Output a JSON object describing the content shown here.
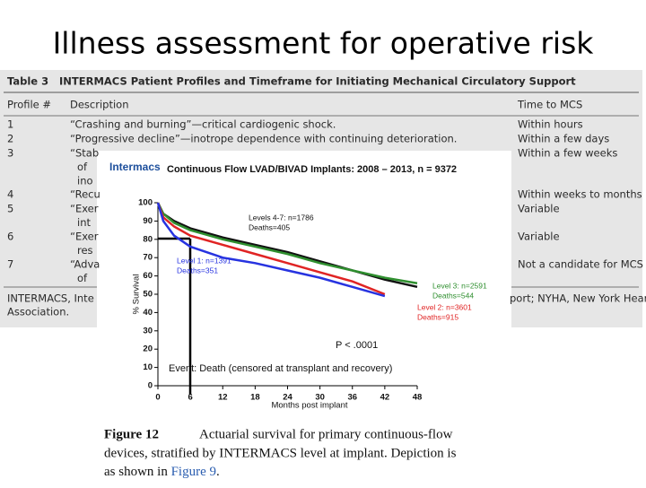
{
  "title": "Illness assessment for operative risk",
  "table": {
    "label": "Table 3",
    "caption": "INTERMACS Patient Profiles and Timeframe for Initiating Mechanical Circulatory Support",
    "columns": [
      "Profile #",
      "Description",
      "Time to MCS"
    ],
    "rows": [
      {
        "profile": "1",
        "description": [
          "“Crashing and burning”—critical cardiogenic shock."
        ],
        "time": "Within hours"
      },
      {
        "profile": "2",
        "description": [
          "“Progressive decline”—inotrope dependence with continuing deterioration."
        ],
        "time": "Within a few days"
      },
      {
        "profile": "3",
        "description": [
          "“Stab",
          "of",
          "ino"
        ],
        "time": "Within a few weeks"
      },
      {
        "profile": "4",
        "description": [
          "“Recu"
        ],
        "time": "Within weeks to months"
      },
      {
        "profile": "5",
        "description": [
          "“Exer",
          "int"
        ],
        "time": "Variable"
      },
      {
        "profile": "6",
        "description": [
          "“Exer",
          "res"
        ],
        "time": "Variable"
      },
      {
        "profile": "7",
        "description": [
          "“Adva",
          "of"
        ],
        "time": "Not a candidate for MCS"
      }
    ],
    "footnote": [
      "INTERMACS, Inte",
      "port; NYHA, New York Heart",
      "Association."
    ]
  },
  "chart_data": {
    "type": "line",
    "logo": "Intermacs",
    "title": "Continuous Flow LVAD/BIVAD Implants:  2008 – 2013, n = 9372",
    "x_label": "Months post implant",
    "y_label": "% Survival",
    "x": [
      0,
      1,
      3,
      6,
      12,
      18,
      24,
      30,
      36,
      42,
      48
    ],
    "xlim": [
      0,
      48
    ],
    "xticks": [
      0,
      6,
      12,
      18,
      24,
      30,
      36,
      42,
      48
    ],
    "ylim": [
      0,
      100
    ],
    "yticks": [
      0,
      10,
      20,
      30,
      40,
      50,
      60,
      70,
      80,
      90,
      100
    ],
    "series": [
      {
        "name": "Levels 4-7: n=1786",
        "deaths": "Deaths=405",
        "color": "#111111",
        "values": [
          100,
          94,
          90,
          86,
          81,
          77,
          73,
          68,
          63,
          58,
          54
        ]
      },
      {
        "name": "Level 3: n=2591",
        "deaths": "Deaths=544",
        "color": "#2f8f2f",
        "values": [
          100,
          94,
          89,
          85,
          80,
          76,
          72,
          67,
          63,
          59,
          56
        ]
      },
      {
        "name": "Level 2: n=3601",
        "deaths": "Deaths=915",
        "color": "#e02424",
        "values": [
          100,
          92,
          87,
          82,
          77,
          72,
          67,
          62,
          57,
          50,
          null
        ]
      },
      {
        "name": "Level 1: n=1391",
        "deaths": "Deaths=351",
        "color": "#2733e0",
        "values": [
          100,
          90,
          82,
          76,
          70,
          67,
          63,
          59,
          54,
          49,
          null
        ]
      }
    ],
    "annotations": [
      "P < .0001",
      "Event:  Death (censored at transplant and recovery)"
    ]
  },
  "caption": {
    "label": "Figure 12",
    "lines": [
      "Actuarial survival for primary continuous-flow",
      "devices, stratified by INTERMACS level at implant. Depiction is"
    ],
    "last": [
      "as shown in ",
      "Figure 9",
      "."
    ]
  }
}
